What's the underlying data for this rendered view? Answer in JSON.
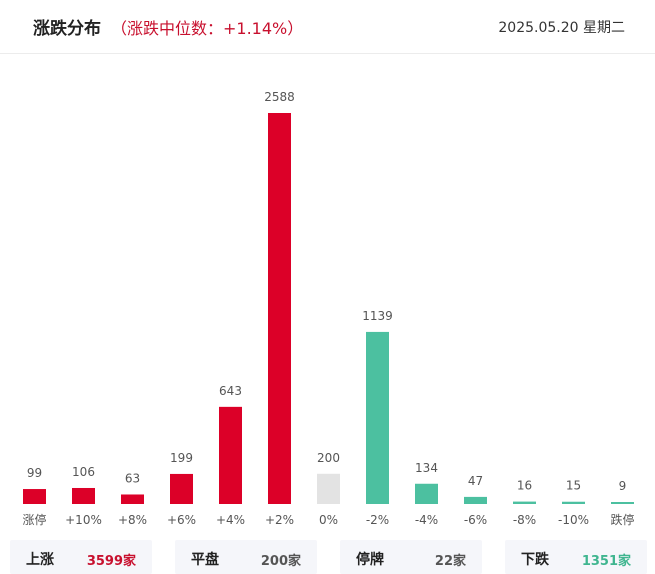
{
  "header": {
    "title": "涨跌分布",
    "subtitle": "（涨跌中位数：+1.14%）",
    "date": "2025.05.20 星期二"
  },
  "colors": {
    "up": "#dc0028",
    "flat": "#e3e3e3",
    "down": "#4cc0a0"
  },
  "chart_data": {
    "type": "bar",
    "categories": [
      "涨停",
      "+10%",
      "+8%",
      "+6%",
      "+4%",
      "+2%",
      "0%",
      "-2%",
      "-4%",
      "-6%",
      "-8%",
      "-10%",
      "跌停"
    ],
    "values": [
      99,
      106,
      63,
      199,
      643,
      2588,
      200,
      1139,
      134,
      47,
      16,
      15,
      9
    ],
    "bar_colors": [
      "up",
      "up",
      "up",
      "up",
      "up",
      "up",
      "flat",
      "down",
      "down",
      "down",
      "down",
      "down",
      "down"
    ],
    "title": "涨跌分布",
    "subtitle": "（涨跌中位数：+1.14%）",
    "xlabel": "",
    "ylabel": "",
    "grid": false,
    "legend": "none"
  },
  "summary": [
    {
      "label": "上涨",
      "value": "3599家",
      "tone": "up"
    },
    {
      "label": "平盘",
      "value": "200家",
      "tone": "neutral"
    },
    {
      "label": "停牌",
      "value": "22家",
      "tone": "neutral"
    },
    {
      "label": "下跌",
      "value": "1351家",
      "tone": "down"
    }
  ]
}
